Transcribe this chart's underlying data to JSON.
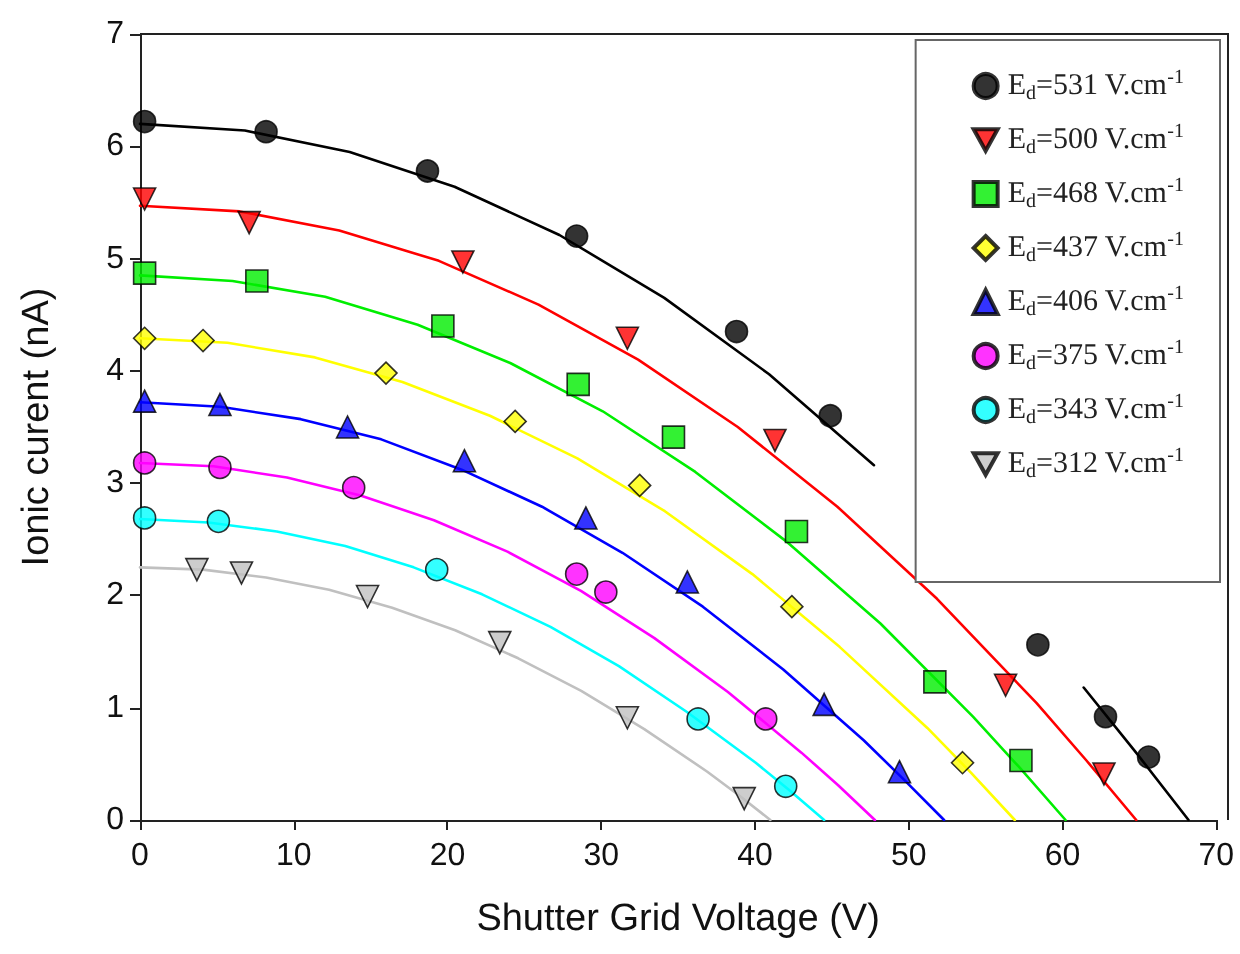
{
  "chart_data": {
    "type": "scatter",
    "xlabel": "Shutter Grid Voltage (V)",
    "ylabel": "Ionic curent (nA)",
    "xlim": [
      0,
      70
    ],
    "xticks": [
      0,
      10,
      20,
      30,
      40,
      50,
      60,
      70
    ],
    "ylim": [
      0,
      7
    ],
    "yticks": [
      0,
      1,
      2,
      3,
      4,
      5,
      6,
      7
    ],
    "grid": false,
    "legend": "top right",
    "series": [
      {
        "name": "E$_{d}$=531 V.cm$^{-1}$",
        "color": "#000000",
        "marker": "circle",
        "x": [
          0.3,
          8.2,
          18.7,
          28.4,
          38.8,
          44.9,
          58.4,
          62.8,
          65.6
        ],
        "values": [
          6.22,
          6.13,
          5.78,
          5.2,
          4.35,
          3.6,
          1.56,
          0.92,
          0.56
        ]
      },
      {
        "name": "E$_{d}$=500 V.cm$^{-1}$",
        "color": "#ff0000",
        "marker": "triangle-down",
        "x": [
          0.3,
          7.1,
          21.0,
          31.7,
          41.3,
          56.3,
          62.7
        ],
        "values": [
          5.53,
          5.32,
          4.97,
          4.29,
          3.38,
          1.2,
          0.41
        ]
      },
      {
        "name": "E$_{d}$=468 V.cm$^{-1}$",
        "color": "#00ee00",
        "marker": "square",
        "x": [
          0.3,
          7.6,
          19.7,
          28.5,
          34.7,
          42.7,
          51.7,
          57.3
        ],
        "values": [
          4.87,
          4.8,
          4.4,
          3.88,
          3.41,
          2.57,
          1.23,
          0.53
        ]
      },
      {
        "name": "E$_{d}$=437 V.cm$^{-1}$",
        "color": "#ffff00",
        "marker": "diamond",
        "x": [
          0.3,
          4.1,
          16.0,
          24.4,
          32.5,
          42.4,
          53.5
        ],
        "values": [
          4.29,
          4.27,
          3.98,
          3.55,
          2.98,
          1.9,
          0.51
        ]
      },
      {
        "name": "E$_{d}$=406 V.cm$^{-1}$",
        "color": "#0000ff",
        "marker": "triangle",
        "x": [
          0.3,
          5.2,
          13.5,
          21.1,
          29.0,
          35.6,
          44.5,
          49.4
        ],
        "values": [
          3.73,
          3.7,
          3.5,
          3.2,
          2.69,
          2.12,
          1.03,
          0.43
        ]
      },
      {
        "name": "E$_{d}$=375 V.cm$^{-1}$",
        "color": "#ff00ff",
        "marker": "circle",
        "x": [
          0.3,
          5.2,
          13.9,
          28.4,
          30.3,
          40.7
        ],
        "values": [
          3.18,
          3.14,
          2.96,
          2.19,
          2.03,
          0.9
        ]
      },
      {
        "name": "E$_{d}$=343 V.cm$^{-1}$",
        "color": "#00ffff",
        "marker": "circle",
        "x": [
          0.3,
          5.1,
          19.3,
          36.3,
          42.0
        ],
        "values": [
          2.69,
          2.66,
          2.23,
          0.9,
          0.3
        ]
      },
      {
        "name": "E$_{d}$=312 V.cm$^{-1}$",
        "color": "#c0c0c0",
        "marker": "triangle-down",
        "x": [
          3.7,
          6.6,
          14.8,
          23.4,
          31.7,
          39.3
        ],
        "values": [
          2.23,
          2.2,
          1.99,
          1.58,
          0.91,
          0.19
        ]
      },
      {
        "type": "line",
        "color": "#000000",
        "marker": "none",
        "x": [
          0,
          6.82,
          13.64,
          20.46,
          27.28,
          34.1,
          40.92,
          47.74,
          54.56,
          61.38,
          64.79,
          68.2
        ],
        "values": [
          6.2,
          6.14,
          5.95,
          5.64,
          5.21,
          4.65,
          3.97,
          3.16,
          null,
          1.18,
          0.6,
          0
        ]
      },
      {
        "type": "line",
        "color": "#ff0000",
        "marker": "none",
        "x": [
          0,
          6.48,
          12.96,
          19.44,
          25.92,
          32.4,
          38.88,
          45.36,
          51.84,
          58.32,
          61.56,
          64.8
        ],
        "values": [
          5.47,
          5.42,
          5.25,
          4.98,
          4.59,
          4.1,
          3.5,
          2.79,
          1.97,
          1.04,
          0.53,
          0
        ]
      },
      {
        "type": "line",
        "color": "#00ee00",
        "marker": "none",
        "x": [
          0,
          6.02,
          12.04,
          18.06,
          24.08,
          30.1,
          36.12,
          42.14,
          48.16,
          54.18,
          57.19,
          60.2
        ],
        "values": [
          4.85,
          4.8,
          4.66,
          4.41,
          4.07,
          3.64,
          3.1,
          2.47,
          1.75,
          0.92,
          0.47,
          0
        ]
      },
      {
        "type": "line",
        "color": "#ffff00",
        "marker": "none",
        "x": [
          0,
          5.69,
          11.38,
          17.07,
          22.76,
          28.45,
          34.14,
          39.83,
          45.52,
          51.21,
          54.06,
          56.9
        ],
        "values": [
          4.29,
          4.25,
          4.12,
          3.9,
          3.6,
          3.22,
          2.75,
          2.19,
          1.54,
          0.82,
          0.42,
          0
        ]
      },
      {
        "type": "line",
        "color": "#0000ff",
        "marker": "none",
        "x": [
          0,
          5.23,
          10.46,
          15.69,
          20.92,
          26.15,
          31.38,
          36.61,
          41.84,
          47.07,
          49.69,
          52.3
        ],
        "values": [
          3.72,
          3.68,
          3.57,
          3.39,
          3.12,
          2.79,
          2.38,
          1.9,
          1.34,
          0.71,
          0.36,
          0
        ]
      },
      {
        "type": "line",
        "color": "#ff00ff",
        "marker": "none",
        "x": [
          0,
          4.78,
          9.56,
          14.34,
          19.12,
          23.9,
          28.68,
          33.46,
          38.24,
          43.02,
          45.41,
          47.8
        ],
        "values": [
          3.18,
          3.15,
          3.05,
          2.89,
          2.67,
          2.39,
          2.04,
          1.62,
          1.14,
          0.6,
          0.31,
          0
        ]
      },
      {
        "type": "line",
        "color": "#00ffff",
        "marker": "none",
        "x": [
          0,
          4.45,
          8.9,
          13.35,
          17.8,
          22.25,
          26.7,
          31.15,
          35.6,
          40.05,
          42.28,
          44.5
        ],
        "values": [
          2.68,
          2.65,
          2.57,
          2.44,
          2.25,
          2.01,
          1.72,
          1.37,
          0.96,
          0.51,
          0.26,
          0
        ]
      },
      {
        "type": "line",
        "color": "#c0c0c0",
        "marker": "none",
        "x": [
          0,
          4.1,
          8.2,
          12.3,
          16.4,
          20.5,
          24.6,
          28.7,
          32.8,
          36.9,
          38.95,
          41
        ],
        "values": [
          2.25,
          2.23,
          2.16,
          2.05,
          1.89,
          1.69,
          1.44,
          1.15,
          0.81,
          0.43,
          0.22,
          0
        ]
      }
    ]
  }
}
